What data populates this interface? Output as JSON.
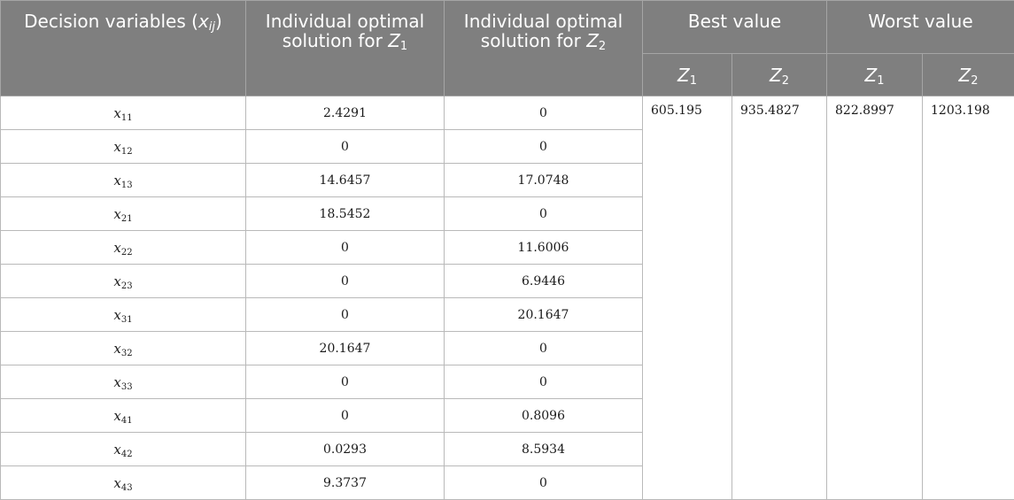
{
  "header": {
    "decision_variables": "Decision variables",
    "decision_variables_symbol": "x",
    "decision_variables_symbol_sub": "ij",
    "individual_optimal": "Individual optimal",
    "solution_for": "solution for",
    "z_letter": "Z",
    "z1_sub": "1",
    "z2_sub": "2",
    "best_value": "Best value",
    "worst_value": "Worst value"
  },
  "rows": [
    {
      "var_sub": "11",
      "z1": "2.4291",
      "z2": "0"
    },
    {
      "var_sub": "12",
      "z1": "0",
      "z2": "0"
    },
    {
      "var_sub": "13",
      "z1": "14.6457",
      "z2": "17.0748"
    },
    {
      "var_sub": "21",
      "z1": "18.5452",
      "z2": "0"
    },
    {
      "var_sub": "22",
      "z1": "0",
      "z2": "11.6006"
    },
    {
      "var_sub": "23",
      "z1": "0",
      "z2": "6.9446"
    },
    {
      "var_sub": "31",
      "z1": "0",
      "z2": "20.1647"
    },
    {
      "var_sub": "32",
      "z1": "20.1647",
      "z2": "0"
    },
    {
      "var_sub": "33",
      "z1": "0",
      "z2": "0"
    },
    {
      "var_sub": "41",
      "z1": "0",
      "z2": "0.8096"
    },
    {
      "var_sub": "42",
      "z1": "0.0293",
      "z2": "8.5934"
    },
    {
      "var_sub": "43",
      "z1": "9.3737",
      "z2": "0"
    }
  ],
  "best": {
    "z1": "605.195",
    "z2": "935.4827"
  },
  "worst": {
    "z1": "822.8997",
    "z2": "1203.198"
  }
}
